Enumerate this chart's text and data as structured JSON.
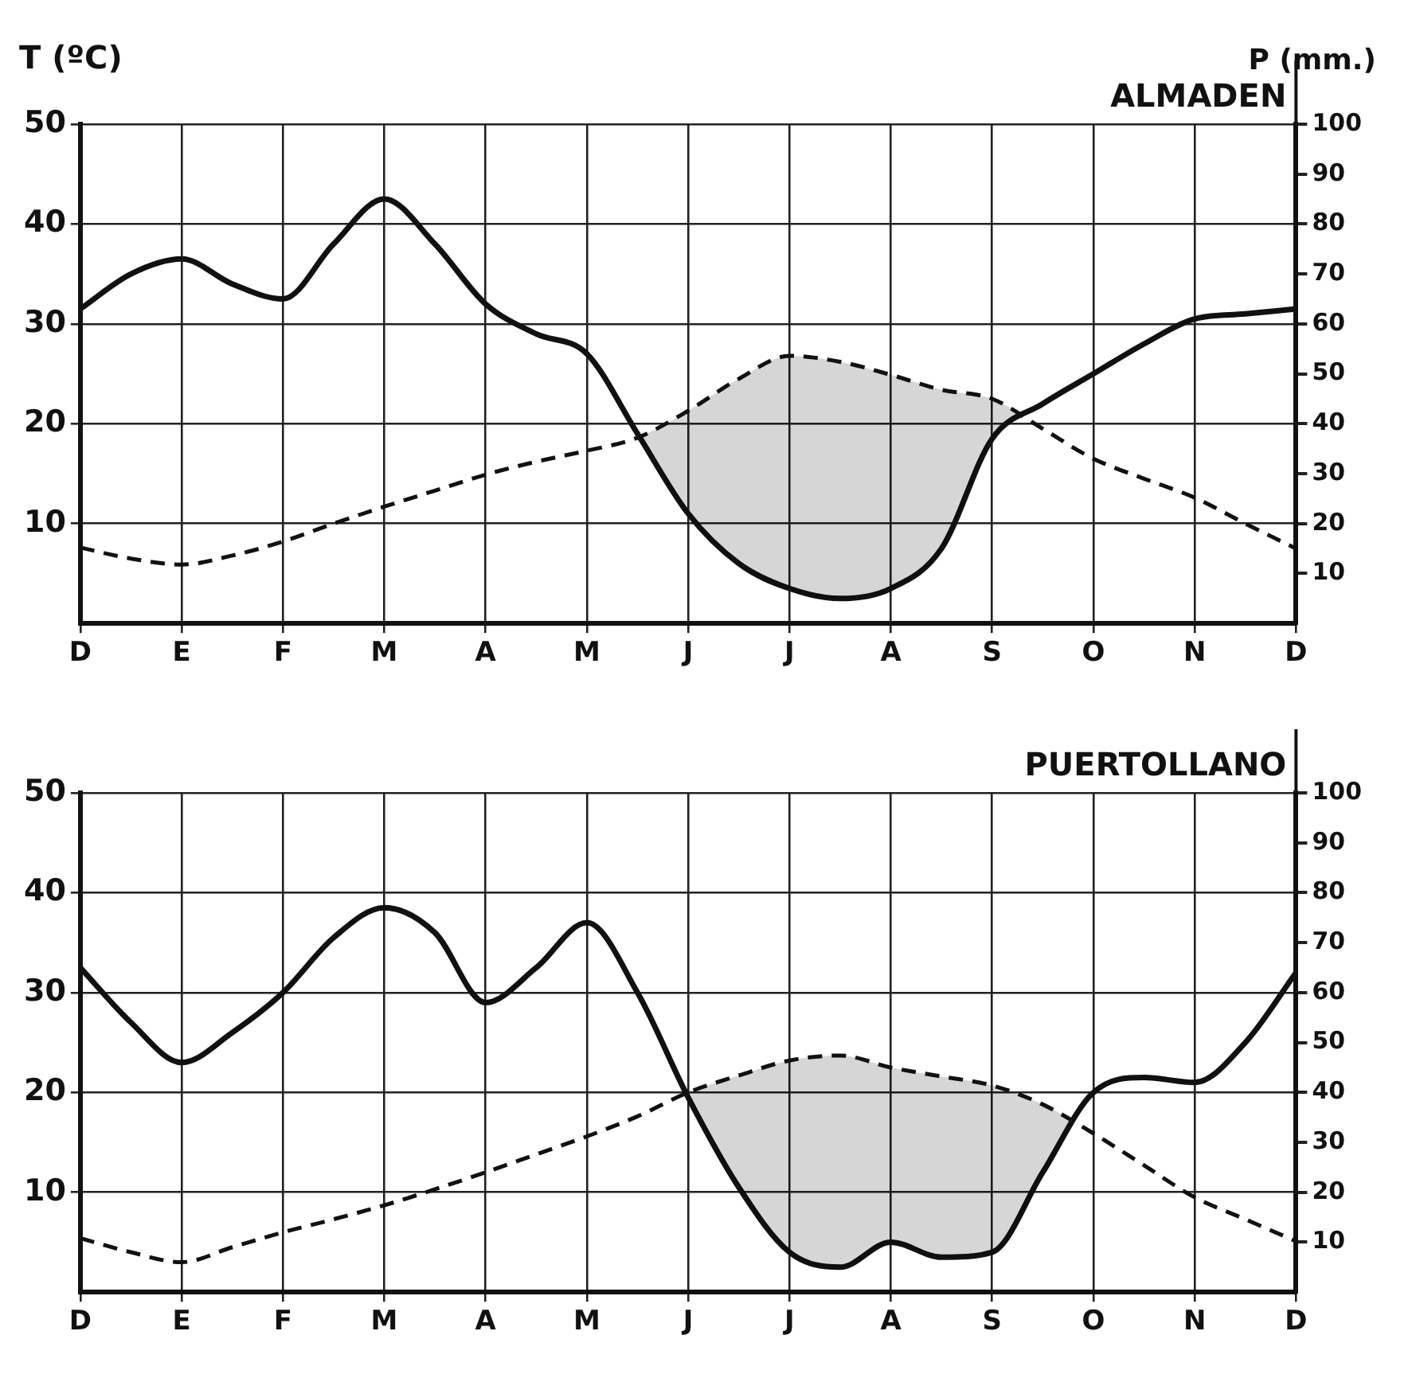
{
  "chart_data": [
    {
      "type": "line",
      "title": "ALMADEN",
      "ylabel": "T (ºC)",
      "y2label": "P (mm.)",
      "categories": [
        "D",
        null,
        "E",
        null,
        "F",
        null,
        "M",
        null,
        "A",
        null,
        "M",
        null,
        "J",
        null,
        "J",
        null,
        "A",
        null,
        "S",
        null,
        "O",
        null,
        "N",
        null,
        "D"
      ],
      "ylim": [
        0,
        50
      ],
      "yticks": [
        10,
        20,
        30,
        40,
        50
      ],
      "y2lim": [
        0,
        100
      ],
      "y2ticks": [
        10,
        20,
        30,
        40,
        50,
        60,
        70,
        80,
        90,
        100
      ],
      "grid": true,
      "legend": false,
      "marker": "none",
      "series": [
        {
          "color": "#111111",
          "line_style": "dashed",
          "values": [
            7.6,
            6.5,
            5.9,
            6.8,
            8.2,
            10,
            11.7,
            13.3,
            14.9,
            16.2,
            17.3,
            18.6,
            21.3,
            24.5,
            26.8,
            26.2,
            24.9,
            23.4,
            22.5,
            19.5,
            16.5,
            14.5,
            12.6,
            10,
            7.5
          ]
        },
        {
          "color": "#111111",
          "line_style": "solid",
          "axis": "y2",
          "values": [
            63,
            70,
            73,
            68,
            65,
            76,
            85,
            76,
            64,
            58,
            54,
            38,
            22,
            12,
            7,
            5,
            7,
            15,
            37,
            44,
            50,
            56,
            61,
            62,
            63
          ]
        }
      ]
    },
    {
      "type": "line",
      "title": "PUERTOLLANO",
      "categories": [
        "D",
        null,
        "E",
        null,
        "F",
        null,
        "M",
        null,
        "A",
        null,
        "M",
        null,
        "J",
        null,
        "J",
        null,
        "A",
        null,
        "S",
        null,
        "O",
        null,
        "N",
        null,
        "D"
      ],
      "ylim": [
        0,
        50
      ],
      "yticks": [
        10,
        20,
        30,
        40,
        50
      ],
      "y2lim": [
        0,
        100
      ],
      "y2ticks": [
        10,
        20,
        30,
        40,
        50,
        60,
        70,
        80,
        90,
        100
      ],
      "grid": true,
      "legend": false,
      "marker": "none",
      "series": [
        {
          "color": "#111111",
          "line_style": "dashed",
          "values": [
            5.4,
            4,
            3.0,
            4.5,
            6.0,
            7.3,
            8.7,
            10.3,
            12.0,
            13.8,
            15.6,
            17.6,
            20.0,
            21.7,
            23.2,
            23.7,
            22.5,
            21.6,
            20.7,
            18.8,
            15.9,
            12.7,
            9.5,
            7.3,
            5.1
          ]
        },
        {
          "color": "#111111",
          "line_style": "solid",
          "axis": "y2",
          "values": [
            65,
            54,
            46,
            52,
            60,
            71,
            77,
            72,
            58,
            65,
            74,
            60,
            39,
            21,
            8,
            5,
            10,
            7,
            8,
            24,
            40,
            43,
            42,
            50,
            64
          ]
        }
      ]
    }
  ]
}
